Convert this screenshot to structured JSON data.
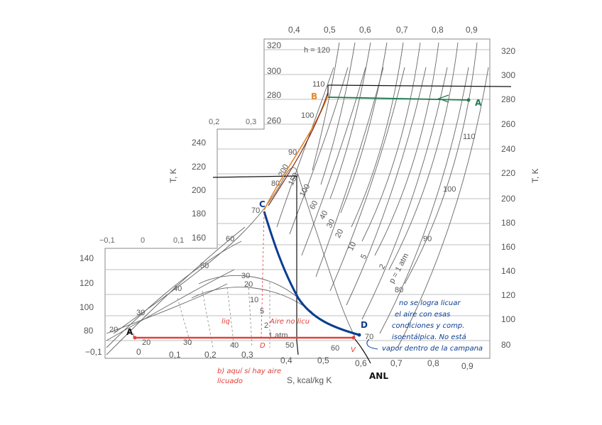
{
  "axes": {
    "left_label": "T, K",
    "right_label": "T, K",
    "bottom_label": "S, kcal/kg K",
    "top_ticks": [
      "0,4",
      "0,5",
      "0,6",
      "0,7",
      "0,8",
      "0,9"
    ],
    "bottom_ticks": [
      "−0,1",
      "0",
      "0,1",
      "0,2",
      "0,3",
      "0,4",
      "0,5",
      "0,6",
      "0,7",
      "0,8",
      "0,9"
    ],
    "left_ticks_upper": [
      "320",
      "300",
      "280",
      "260"
    ],
    "left_ticks_mid": [
      "240",
      "220",
      "200",
      "180",
      "160"
    ],
    "left_ticks_lower": [
      "140",
      "120",
      "100",
      "80"
    ],
    "right_ticks": [
      "320",
      "300",
      "280",
      "260",
      "240",
      "220",
      "200",
      "180",
      "160",
      "140",
      "120",
      "100",
      "80"
    ],
    "step_ticks_upper": [
      "0,2",
      "0,3"
    ],
    "step_ticks_lower": [
      "−0,1",
      "0",
      "0,1"
    ]
  },
  "isolabels": {
    "h120": "h = 120",
    "h110": "110",
    "h100": "100",
    "h90": "90",
    "h80": "80",
    "h70": "70",
    "h60": "60",
    "h50": "50",
    "h40": "40",
    "h30": "30",
    "h20": "20",
    "p200": "200",
    "p150": "150",
    "p100": "100",
    "p60": "60",
    "p40": "40",
    "p30": "30",
    "p20": "20",
    "p10": "10",
    "p5": "5",
    "p2": "2",
    "p1": "p = 1 atm",
    "r110": "110",
    "r100": "100",
    "r90": "90",
    "r80": "80",
    "r70": "70",
    "r60": "60",
    "dome30": "30",
    "dome20": "20",
    "dome10": "10",
    "dome5": "5",
    "dome2": "2",
    "dome1": "1 atm",
    "l60": "60",
    "l50": "50",
    "l40": "40",
    "l30": "30",
    "l20": "20"
  },
  "points": {
    "A_right": "A",
    "B": "B",
    "C": "C",
    "D": "D",
    "A_left": "A",
    "D_left": "D",
    "V": "V",
    "ANL": "ANL"
  },
  "annotations": {
    "liq": "liq",
    "aire_no_licu": "Aire no licu",
    "note_lines": [
      "no se logra licuar",
      "el aire con esas",
      "condiciones y comp.",
      "isoentálpica. No está"
    ],
    "vapor": "vapor dentro de la campana",
    "b_line1": "b) aquí sí hay aire",
    "b_line2": "licuado"
  },
  "colors": {
    "orange": "#e8862a",
    "green": "#1f7a4c",
    "blue": "#0a3d91",
    "red": "#e0403a",
    "dark_red": "#7a2a1a",
    "black": "#111111"
  }
}
